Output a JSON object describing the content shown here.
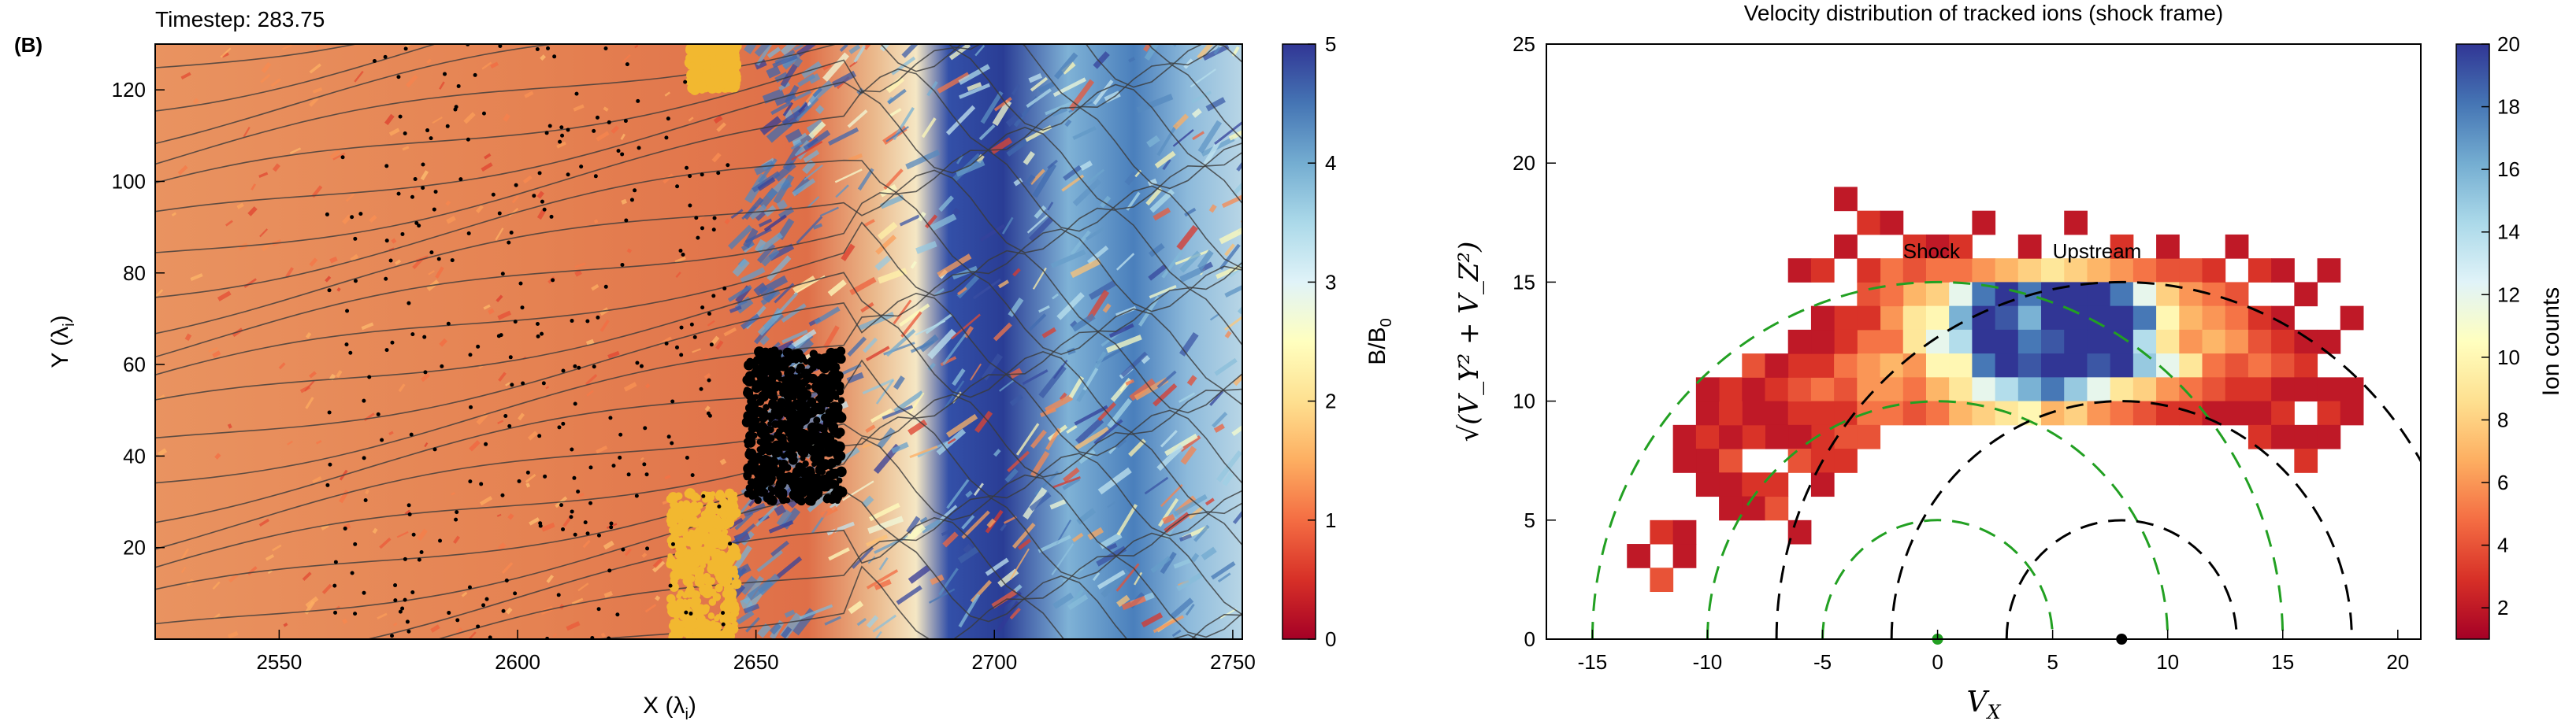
{
  "figure": {
    "panel_label": "(B)",
    "timestep_text": "Timestep: 283.75"
  },
  "colors": {
    "upstream_orange": "#e9945a",
    "field_red": "#c7322c",
    "shock_blue": "#2c3d9a",
    "tracked_yellow": "#f2b830",
    "tracked_black": "#000000",
    "shock_circle_green": "#22a022",
    "upstream_circle_black": "#000000"
  },
  "chart_data": [
    {
      "type": "heatmap",
      "title": "",
      "xlabel": "X (λ",
      "xlabel_sub": "i",
      "xlabel_end": ")",
      "ylabel": "Y (λ",
      "ylabel_sub": "i",
      "ylabel_end": ")",
      "xlim": [
        2524,
        2752
      ],
      "ylim": [
        0,
        130
      ],
      "xticks": [
        2550,
        2600,
        2650,
        2700,
        2750
      ],
      "yticks": [
        20,
        40,
        60,
        80,
        100,
        120
      ],
      "colorbar": {
        "label": "B/B",
        "label_sub": "0",
        "range": [
          0,
          5
        ],
        "ticks": [
          0,
          1,
          2,
          3,
          4,
          5
        ],
        "colormap": "RdYlBu"
      },
      "shock_position_x": 2650,
      "regions": [
        {
          "name": "upstream",
          "x_range": [
            2524,
            2640
          ],
          "field_value": 1.3
        },
        {
          "name": "shock_ramp",
          "x_range": [
            2640,
            2668
          ],
          "field_value": 4.5
        },
        {
          "name": "downstream",
          "x_range": [
            2668,
            2752
          ],
          "field_value": 3.2
        }
      ],
      "tracked_particle_clusters": [
        {
          "color": "yellow",
          "x_range": [
            2632,
            2646
          ],
          "y_range": [
            0,
            32
          ]
        },
        {
          "color": "yellow",
          "x_range": [
            2636,
            2646
          ],
          "y_range": [
            120,
            130
          ]
        },
        {
          "color": "black",
          "x_range": [
            2648,
            2668
          ],
          "y_range": [
            30,
            63
          ]
        }
      ]
    },
    {
      "type": "heatmap",
      "title": "Velocity distribution of tracked ions (shock frame)",
      "xlabel": "V",
      "xlabel_sub": "X",
      "ylabel": "√(V_Y² + V_Z²)",
      "xlim": [
        -17,
        21
      ],
      "ylim": [
        0,
        25
      ],
      "xticks": [
        -15,
        -10,
        -5,
        0,
        5,
        10,
        15,
        20
      ],
      "yticks": [
        0,
        5,
        10,
        15,
        20,
        25
      ],
      "bin_size": 1,
      "colorbar": {
        "label": "Ion counts",
        "range": [
          1,
          20
        ],
        "ticks": [
          2,
          4,
          6,
          8,
          10,
          12,
          14,
          16,
          18,
          20
        ],
        "colormap": "RdYlBu"
      },
      "annotations": [
        {
          "text": "Shock",
          "x": -1.5,
          "y": 16,
          "color": "green"
        },
        {
          "text": "Upstream",
          "x": 5,
          "y": 16,
          "color": "black"
        }
      ],
      "circles": [
        {
          "name": "shock",
          "center": [
            0,
            0
          ],
          "radii": [
            5,
            10,
            15
          ],
          "color": "green"
        },
        {
          "name": "upstream",
          "center": [
            8,
            0
          ],
          "radii": [
            5,
            10,
            15
          ],
          "color": "black"
        }
      ],
      "markers": [
        {
          "name": "shock-center",
          "x": 0,
          "y": 0,
          "color": "green"
        },
        {
          "name": "upstream-center",
          "x": 8,
          "y": 0,
          "color": "black"
        }
      ],
      "bins": [
        [
          -12,
          4,
          3
        ],
        [
          -11,
          4,
          2
        ],
        [
          -11,
          3,
          2
        ],
        [
          -12,
          2,
          4
        ],
        [
          -11,
          8,
          2
        ],
        [
          -10,
          8,
          3
        ],
        [
          -10,
          7,
          2
        ],
        [
          -9,
          7,
          4
        ],
        [
          -9,
          6,
          2
        ],
        [
          -8,
          6,
          3
        ],
        [
          -8,
          5,
          2
        ],
        [
          -9,
          5,
          2
        ],
        [
          -7,
          5,
          4
        ],
        [
          -6,
          4,
          2
        ],
        [
          -7,
          6,
          3
        ],
        [
          -10,
          6,
          2
        ],
        [
          -11,
          7,
          2
        ],
        [
          -9,
          10,
          3
        ],
        [
          -8,
          10,
          2
        ],
        [
          -8,
          11,
          4
        ],
        [
          -7,
          10,
          3
        ],
        [
          -7,
          9,
          2
        ],
        [
          -6,
          9,
          3
        ],
        [
          -6,
          10,
          4
        ],
        [
          -6,
          11,
          3
        ],
        [
          -5,
          10,
          5
        ],
        [
          -5,
          11,
          3
        ],
        [
          -5,
          9,
          3
        ],
        [
          -4,
          10,
          4
        ],
        [
          -4,
          11,
          5
        ],
        [
          -4,
          9,
          3
        ],
        [
          -4,
          8,
          4
        ],
        [
          -5,
          8,
          3
        ],
        [
          -6,
          8,
          2
        ],
        [
          -7,
          8,
          2
        ],
        [
          -8,
          8,
          3
        ],
        [
          -9,
          8,
          2
        ],
        [
          -10,
          9,
          2
        ],
        [
          -6,
          7,
          4
        ],
        [
          -5,
          7,
          3
        ],
        [
          -5,
          6,
          2
        ],
        [
          -4,
          7,
          3
        ],
        [
          -3,
          12,
          5
        ],
        [
          -3,
          11,
          6
        ],
        [
          -3,
          10,
          6
        ],
        [
          -3,
          9,
          5
        ],
        [
          -3,
          8,
          4
        ],
        [
          -2,
          13,
          6
        ],
        [
          -2,
          12,
          5
        ],
        [
          -2,
          11,
          7
        ],
        [
          -2,
          10,
          6
        ],
        [
          -2,
          9,
          5
        ],
        [
          -1,
          14,
          7
        ],
        [
          -1,
          13,
          9
        ],
        [
          -1,
          12,
          9
        ],
        [
          -1,
          11,
          6
        ],
        [
          -1,
          10,
          5
        ],
        [
          -1,
          9,
          4
        ],
        [
          0,
          14,
          8
        ],
        [
          0,
          13,
          10
        ],
        [
          0,
          12,
          12
        ],
        [
          0,
          11,
          10
        ],
        [
          0,
          10,
          7
        ],
        [
          0,
          9,
          5
        ],
        [
          1,
          15,
          5
        ],
        [
          1,
          14,
          12
        ],
        [
          1,
          13,
          16
        ],
        [
          1,
          12,
          14
        ],
        [
          1,
          11,
          10
        ],
        [
          1,
          10,
          9
        ],
        [
          1,
          9,
          7
        ],
        [
          2,
          15,
          6
        ],
        [
          2,
          14,
          18
        ],
        [
          2,
          13,
          20
        ],
        [
          2,
          12,
          20
        ],
        [
          2,
          11,
          18
        ],
        [
          2,
          10,
          12
        ],
        [
          2,
          9,
          8
        ],
        [
          3,
          15,
          7
        ],
        [
          3,
          14,
          20
        ],
        [
          3,
          13,
          19
        ],
        [
          3,
          12,
          20
        ],
        [
          3,
          11,
          20
        ],
        [
          3,
          10,
          14
        ],
        [
          3,
          9,
          9
        ],
        [
          4,
          15,
          8
        ],
        [
          4,
          14,
          18
        ],
        [
          4,
          13,
          16
        ],
        [
          4,
          12,
          18
        ],
        [
          4,
          11,
          19
        ],
        [
          4,
          10,
          16
        ],
        [
          4,
          9,
          10
        ],
        [
          5,
          15,
          9
        ],
        [
          5,
          14,
          20
        ],
        [
          5,
          13,
          20
        ],
        [
          5,
          12,
          19
        ],
        [
          5,
          11,
          20
        ],
        [
          5,
          10,
          18
        ],
        [
          5,
          9,
          7
        ],
        [
          6,
          15,
          8
        ],
        [
          6,
          14,
          20
        ],
        [
          6,
          13,
          20
        ],
        [
          6,
          12,
          20
        ],
        [
          6,
          11,
          20
        ],
        [
          6,
          10,
          15
        ],
        [
          6,
          9,
          8
        ],
        [
          7,
          15,
          7
        ],
        [
          7,
          14,
          20
        ],
        [
          7,
          13,
          20
        ],
        [
          7,
          12,
          20
        ],
        [
          7,
          11,
          19
        ],
        [
          7,
          10,
          12
        ],
        [
          7,
          9,
          6
        ],
        [
          8,
          15,
          6
        ],
        [
          8,
          14,
          18
        ],
        [
          8,
          13,
          20
        ],
        [
          8,
          12,
          20
        ],
        [
          8,
          11,
          20
        ],
        [
          8,
          10,
          9
        ],
        [
          8,
          9,
          5
        ],
        [
          9,
          15,
          5
        ],
        [
          9,
          14,
          12
        ],
        [
          9,
          13,
          18
        ],
        [
          9,
          12,
          14
        ],
        [
          9,
          11,
          15
        ],
        [
          9,
          10,
          8
        ],
        [
          9,
          9,
          4
        ],
        [
          10,
          15,
          4
        ],
        [
          10,
          14,
          8
        ],
        [
          10,
          13,
          10
        ],
        [
          10,
          12,
          9
        ],
        [
          10,
          11,
          12
        ],
        [
          10,
          10,
          6
        ],
        [
          10,
          9,
          3
        ],
        [
          11,
          15,
          4
        ],
        [
          11,
          14,
          6
        ],
        [
          11,
          13,
          7
        ],
        [
          11,
          12,
          6
        ],
        [
          11,
          11,
          9
        ],
        [
          11,
          10,
          5
        ],
        [
          11,
          9,
          3
        ],
        [
          12,
          14,
          5
        ],
        [
          12,
          13,
          6
        ],
        [
          12,
          12,
          7
        ],
        [
          12,
          11,
          5
        ],
        [
          12,
          10,
          4
        ],
        [
          12,
          9,
          2
        ],
        [
          13,
          14,
          4
        ],
        [
          13,
          13,
          5
        ],
        [
          13,
          12,
          6
        ],
        [
          13,
          11,
          4
        ],
        [
          13,
          10,
          3
        ],
        [
          13,
          9,
          2
        ],
        [
          14,
          13,
          3
        ],
        [
          14,
          12,
          4
        ],
        [
          14,
          11,
          5
        ],
        [
          14,
          10,
          3
        ],
        [
          14,
          9,
          2
        ],
        [
          14,
          8,
          3
        ],
        [
          15,
          13,
          2
        ],
        [
          15,
          12,
          3
        ],
        [
          15,
          11,
          4
        ],
        [
          15,
          10,
          2
        ],
        [
          15,
          9,
          3
        ],
        [
          15,
          8,
          2
        ],
        [
          16,
          12,
          2
        ],
        [
          16,
          11,
          3
        ],
        [
          16,
          10,
          2
        ],
        [
          16,
          8,
          2
        ],
        [
          16,
          7,
          3
        ],
        [
          17,
          10,
          2
        ],
        [
          17,
          9,
          3
        ],
        [
          17,
          8,
          2
        ],
        [
          18,
          10,
          2
        ],
        [
          18,
          9,
          2
        ],
        [
          17,
          12,
          2
        ],
        [
          18,
          13,
          2
        ],
        [
          17,
          15,
          2
        ],
        [
          13,
          16,
          2
        ],
        [
          14,
          15,
          3
        ],
        [
          15,
          15,
          2
        ],
        [
          16,
          14,
          2
        ],
        [
          -6,
          15,
          2
        ],
        [
          -5,
          15,
          3
        ],
        [
          -4,
          16,
          2
        ],
        [
          -3,
          17,
          3
        ],
        [
          -2,
          17,
          2
        ],
        [
          -1,
          16,
          3
        ],
        [
          0,
          16,
          2
        ],
        [
          1,
          16,
          3
        ],
        [
          2,
          17,
          2
        ],
        [
          4,
          16,
          2
        ],
        [
          6,
          17,
          2
        ],
        [
          8,
          16,
          3
        ],
        [
          10,
          16,
          2
        ],
        [
          12,
          15,
          3
        ],
        [
          -4,
          18,
          2
        ],
        [
          -13,
          3,
          2
        ],
        [
          -2,
          15,
          5
        ],
        [
          -3,
          14,
          4
        ],
        [
          -4,
          13,
          3
        ],
        [
          -4,
          12,
          3
        ],
        [
          -5,
          12,
          2
        ],
        [
          -6,
          12,
          2
        ],
        [
          -5,
          13,
          2
        ],
        [
          -3,
          13,
          3
        ],
        [
          -7,
          11,
          2
        ],
        [
          -8,
          9,
          2
        ],
        [
          -9,
          9,
          3
        ],
        [
          -10,
          10,
          2
        ],
        [
          -3,
          15,
          3
        ],
        [
          -1,
          15,
          4
        ],
        [
          0,
          15,
          5
        ],
        [
          -2,
          14,
          5
        ]
      ]
    }
  ]
}
